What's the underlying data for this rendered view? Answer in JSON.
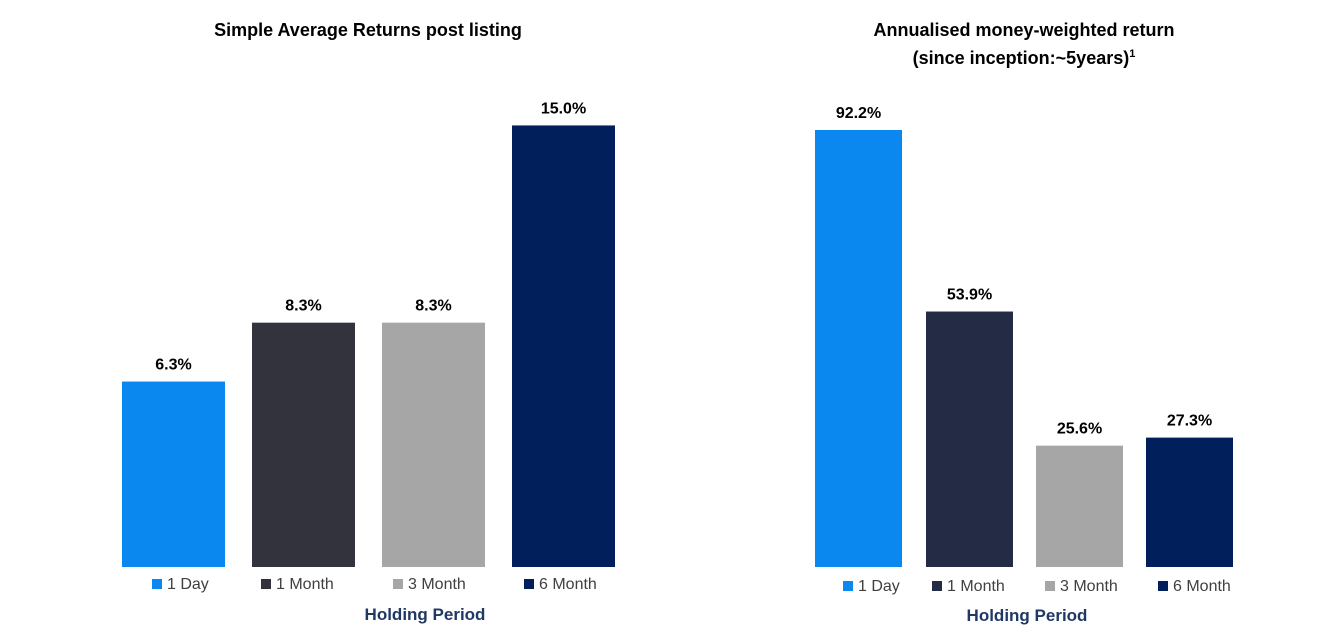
{
  "chart_data": [
    {
      "type": "bar",
      "title": "Simple Average Returns post listing",
      "title_superscript": "",
      "xlabel": "Holding Period",
      "ylabel": "",
      "categories": [
        "1 Day",
        "1 Month",
        "3 Month",
        "6 Month"
      ],
      "values": [
        6.3,
        8.3,
        8.3,
        15.0
      ],
      "value_labels": [
        "6.3%",
        "8.3%",
        "8.3%",
        "15.0%"
      ],
      "colors": [
        "#0a88f0",
        "#33333d",
        "#a6a6a6",
        "#001f5b"
      ],
      "ylim": [
        0,
        16
      ],
      "grid": false,
      "legend": "bottom"
    },
    {
      "type": "bar",
      "title": [
        "Annualised money-weighted return",
        "(since inception:~5years)"
      ],
      "title_superscript": "1",
      "xlabel": "Holding Period",
      "ylabel": "",
      "categories": [
        "1 Day",
        "1 Month",
        "3 Month",
        "6 Month"
      ],
      "values": [
        92.2,
        53.9,
        25.6,
        27.3
      ],
      "value_labels": [
        "92.2%",
        "53.9%",
        "25.6%",
        "27.3%"
      ],
      "colors": [
        "#0a88f0",
        "#232b45",
        "#a6a6a6",
        "#001f5b"
      ],
      "ylim": [
        0,
        92.2
      ],
      "grid": false,
      "legend": "bottom"
    }
  ],
  "style": {
    "xlabel_color": "#1f3864",
    "legend_text_color": "#404040",
    "label_color": "#000000"
  }
}
